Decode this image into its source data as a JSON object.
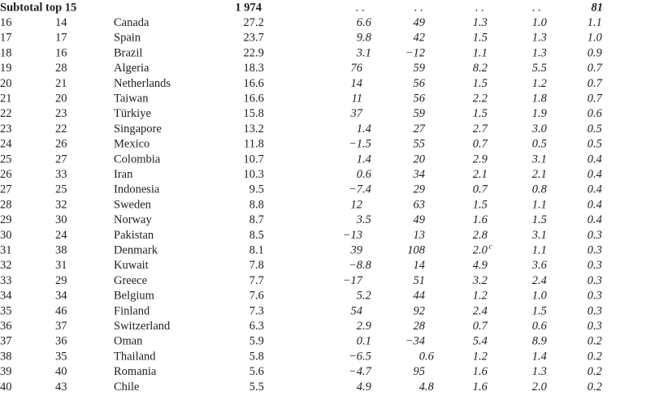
{
  "table": {
    "header": [
      "Subtotal top 15",
      "1 974",
      ". .",
      ". .",
      ". .",
      ". .",
      "81"
    ],
    "rows": [
      [
        "16",
        "14",
        "Canada",
        "27.2",
        "6.6",
        "49",
        "1.3",
        "1.0",
        "1.1"
      ],
      [
        "17",
        "17",
        "Spain",
        "23.7",
        "9.8",
        "42",
        "1.5",
        "1.3",
        "1.0"
      ],
      [
        "18",
        "16",
        "Brazil",
        "22.9",
        "3.1",
        "−12",
        "1.1",
        "1.3",
        "0.9"
      ],
      [
        "19",
        "28",
        "Algeria",
        "18.3",
        "76",
        "59",
        "8.2",
        "5.5",
        "0.7"
      ],
      [
        "20",
        "21",
        "Netherlands",
        "16.6",
        "14",
        "56",
        "1.5",
        "1.2",
        "0.7"
      ],
      [
        "21",
        "20",
        "Taiwan",
        "16.6",
        "11",
        "56",
        "2.2",
        "1.8",
        "0.7"
      ],
      [
        "22",
        "23",
        "Türkiye",
        "15.8",
        "37",
        "59",
        "1.5",
        "1.9",
        "0.6"
      ],
      [
        "23",
        "22",
        "Singapore",
        "13.2",
        "1.4",
        "27",
        "2.7",
        "3.0",
        "0.5"
      ],
      [
        "24",
        "26",
        "Mexico",
        "11.8",
        "−1.5",
        "55",
        "0.7",
        "0.5",
        "0.5"
      ],
      [
        "25",
        "27",
        "Colombia",
        "10.7",
        "1.4",
        "20",
        "2.9",
        "3.1",
        "0.4"
      ],
      [
        "26",
        "33",
        "Iran",
        "10.3",
        "0.6",
        "34",
        "2.1",
        "2.1",
        "0.4"
      ],
      [
        "27",
        "25",
        "Indonesia",
        "9.5",
        "−7.4",
        "29",
        "0.7",
        "0.8",
        "0.4"
      ],
      [
        "28",
        "32",
        "Sweden",
        "8.8",
        "12",
        "63",
        "1.5",
        "1.1",
        "0.4"
      ],
      [
        "29",
        "30",
        "Norway",
        "8.7",
        "3.5",
        "49",
        "1.6",
        "1.5",
        "0.4"
      ],
      [
        "30",
        "24",
        "Pakistan",
        "8.5",
        "−13",
        "13",
        "2.8",
        "3.1",
        "0.3"
      ],
      [
        "31",
        "38",
        "Denmark",
        "8.1",
        "39",
        "108",
        {
          "text": "2.0",
          "note": "c"
        },
        "1.1",
        "0.3"
      ],
      [
        "32",
        "31",
        "Kuwait",
        "7.8",
        "−8.8",
        "14",
        "4.9",
        "3.6",
        "0.3"
      ],
      [
        "33",
        "29",
        "Greece",
        "7.7",
        "−17",
        "51",
        "3.2",
        "2.4",
        "0.3"
      ],
      [
        "34",
        "34",
        "Belgium",
        "7.6",
        "5.2",
        "44",
        "1.2",
        "1.0",
        "0.3"
      ],
      [
        "35",
        "46",
        "Finland",
        "7.3",
        "54",
        "92",
        "2.4",
        "1.5",
        "0.3"
      ],
      [
        "36",
        "37",
        "Switzerland",
        "6.3",
        "2.9",
        "28",
        "0.7",
        "0.6",
        "0.3"
      ],
      [
        "37",
        "36",
        "Oman",
        "5.9",
        "0.1",
        "−34",
        "5.4",
        "8.9",
        "0.2"
      ],
      [
        "38",
        "35",
        "Thailand",
        "5.8",
        "−6.5",
        "0.6",
        "1.2",
        "1.4",
        "0.2"
      ],
      [
        "39",
        "40",
        "Romania",
        "5.6",
        "−4.7",
        "95",
        "1.6",
        "1.3",
        "0.2"
      ],
      [
        "40",
        "43",
        "Chile",
        "5.5",
        "4.9",
        "4.8",
        "1.6",
        "2.0",
        "0.2"
      ]
    ]
  }
}
